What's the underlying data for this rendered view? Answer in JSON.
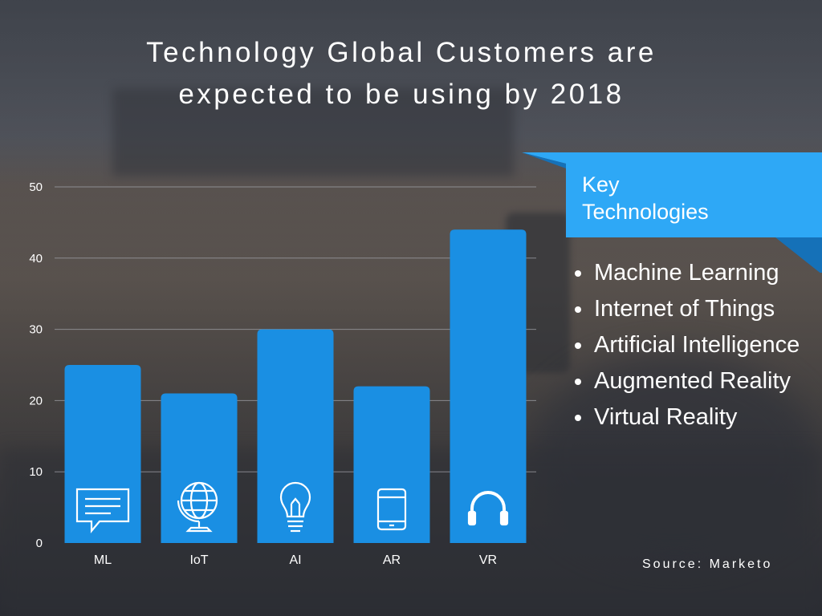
{
  "title_lines": [
    "Technology Global Customers are",
    "expected to be using by 2018"
  ],
  "key_box": {
    "title_lines": [
      "Key",
      "Technologies"
    ],
    "items": [
      "Machine Learning",
      "Internet of Things",
      "Artificial Intelligence",
      "Augmented Reality",
      "Virtual Reality"
    ]
  },
  "source": "Source: Marketo",
  "colors": {
    "bar": "#1a8fe3",
    "banner": "#2ea8f6",
    "banner_fold": "#1571b8",
    "text": "#ffffff"
  },
  "chart_data": {
    "type": "bar",
    "categories": [
      "ML",
      "IoT",
      "AI",
      "AR",
      "VR"
    ],
    "values": [
      25,
      21,
      30,
      22,
      44
    ],
    "icons": [
      "chat-bubble-icon",
      "globe-icon",
      "lightbulb-icon",
      "tablet-icon",
      "headphones-icon"
    ],
    "ylim": [
      0,
      50
    ],
    "yticks": [
      0,
      10,
      20,
      30,
      40,
      50
    ],
    "grid": true
  }
}
